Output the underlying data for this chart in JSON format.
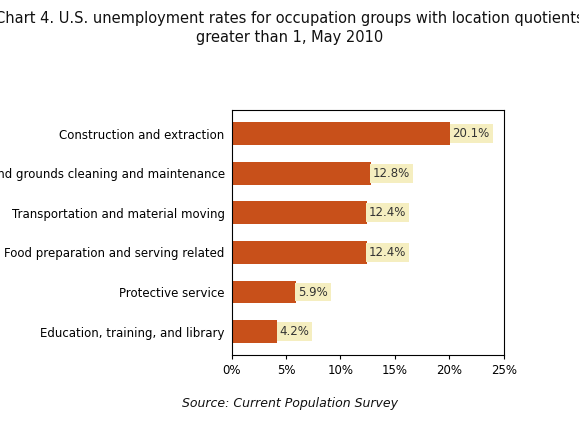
{
  "title_line1": "Chart 4. U.S. unemployment rates for occupation groups with location quotients",
  "title_line2": "greater than 1, May 2010",
  "categories": [
    "Education, training, and library",
    "Protective service",
    "Food preparation and serving related",
    "Transportation and material moving",
    "Building and grounds cleaning and maintenance",
    "Construction and extraction"
  ],
  "values": [
    4.2,
    5.9,
    12.4,
    12.4,
    12.8,
    20.1
  ],
  "labels": [
    "4.2%",
    "5.9%",
    "12.4%",
    "12.4%",
    "12.8%",
    "20.1%"
  ],
  "bar_color": "#C8501A",
  "label_bg_color": "#F5EEC0",
  "label_text_color": "#333333",
  "xlim": [
    0,
    25
  ],
  "xticks": [
    0,
    5,
    10,
    15,
    20,
    25
  ],
  "xticklabels": [
    "0%",
    "5%",
    "10%",
    "15%",
    "20%",
    "25%"
  ],
  "source_text": "Source: Current Population Survey",
  "title_fontsize": 10.5,
  "ylabel_fontsize": 8.5,
  "tick_fontsize": 8.5,
  "label_fontsize": 8.5,
  "source_fontsize": 9,
  "bar_height": 0.58
}
